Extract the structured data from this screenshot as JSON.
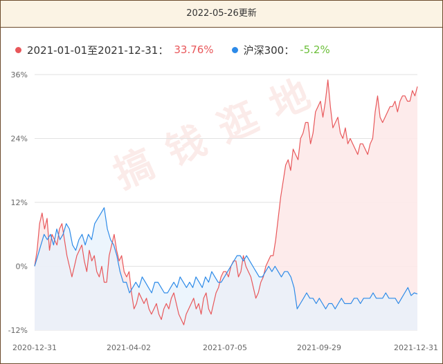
{
  "header": {
    "title": "2022-05-26更新"
  },
  "legend": [
    {
      "label": "2021-01-01至2021-12-31：",
      "value": "33.76%",
      "color": "#e8575a",
      "value_color": "#e8575a"
    },
    {
      "label": "沪深300：",
      "value": "-5.2%",
      "color": "#2c8ae8",
      "value_color": "#6cbf3a"
    }
  ],
  "watermark": "搞钱逛地",
  "colors": {
    "series_a_fill": "#fde9e9",
    "series_b_fill": "#e6f2fc",
    "overlap_fill": "#ede6ee"
  },
  "chart_data": {
    "type": "area",
    "xlabel": "",
    "ylabel": "",
    "x_ticks": [
      "2020-12-31",
      "2021-04-02",
      "2021-07-05",
      "2021-09-29",
      "2021-12-31"
    ],
    "y_ticks": [
      "36%",
      "24%",
      "12%",
      "0%",
      "-12%"
    ],
    "ylim": [
      -12,
      36
    ],
    "grid": true,
    "series": [
      {
        "name": "2021-01-01至2021-12-31",
        "color": "#e8575a",
        "values": [
          0,
          3,
          8,
          10,
          7,
          9,
          3,
          6,
          5,
          4,
          7,
          8,
          5,
          2,
          0,
          -2,
          0,
          2,
          3,
          4,
          1,
          -1,
          3,
          1,
          2,
          -1,
          -2,
          0,
          -3,
          -3,
          2,
          4,
          6,
          3,
          1,
          2,
          -1,
          -2,
          -1,
          -5,
          -8,
          -7,
          -5,
          -6,
          -7,
          -6,
          -8,
          -9,
          -8,
          -7,
          -9,
          -10,
          -8,
          -7,
          -8,
          -6,
          -5,
          -7,
          -9,
          -10,
          -11,
          -9,
          -8,
          -7,
          -6,
          -8,
          -7,
          -9,
          -6,
          -5,
          -8,
          -9,
          -7,
          -5,
          -4,
          -2,
          -1,
          -1,
          -2,
          0,
          1,
          1,
          -2,
          -1,
          2,
          0,
          -1,
          -2,
          -4,
          -6,
          -5,
          -3,
          -2,
          0,
          1,
          2,
          2,
          5,
          9,
          13,
          16,
          19,
          20,
          18,
          22,
          21,
          20,
          24,
          25,
          27,
          27,
          23,
          25,
          29,
          30,
          31,
          28,
          31,
          35,
          30,
          26,
          27,
          28,
          25,
          24,
          26,
          23,
          24,
          23,
          22,
          21,
          23,
          23,
          22,
          21,
          23,
          24,
          29,
          32,
          28,
          27,
          28,
          29,
          30,
          30,
          31,
          29,
          31,
          32,
          32,
          31,
          31,
          33,
          32,
          33.76
        ]
      },
      {
        "name": "沪深300",
        "color": "#2c8ae8",
        "values": [
          0,
          2,
          4,
          6,
          5,
          6,
          4,
          7,
          5,
          6,
          8,
          7,
          4,
          3,
          5,
          6,
          4,
          6,
          5,
          8,
          9,
          10,
          11,
          7,
          5,
          4,
          2,
          -1,
          -3,
          -3,
          -5,
          -4,
          -3,
          -4,
          -2,
          -3,
          -4,
          -5,
          -3,
          -3,
          -4,
          -5,
          -5,
          -4,
          -3,
          -4,
          -2,
          -3,
          -4,
          -3,
          -4,
          -2,
          -3,
          -4,
          -2,
          -3,
          -1,
          -2,
          -3,
          -3,
          -2,
          -1,
          0,
          1,
          2,
          2,
          1,
          2,
          1,
          0,
          -1,
          -2,
          -2,
          -1,
          0,
          -1,
          0,
          -1,
          -2,
          -1,
          -1,
          -2,
          -4,
          -8,
          -7,
          -6,
          -5,
          -6,
          -6,
          -7,
          -6,
          -7,
          -8,
          -7,
          -7,
          -8,
          -7,
          -6,
          -7,
          -7,
          -7,
          -6,
          -6,
          -7,
          -6,
          -6,
          -6,
          -5,
          -6,
          -6,
          -6,
          -5,
          -6,
          -6,
          -6,
          -7,
          -6,
          -5,
          -4,
          -5.5,
          -5,
          -5.2
        ]
      }
    ]
  }
}
